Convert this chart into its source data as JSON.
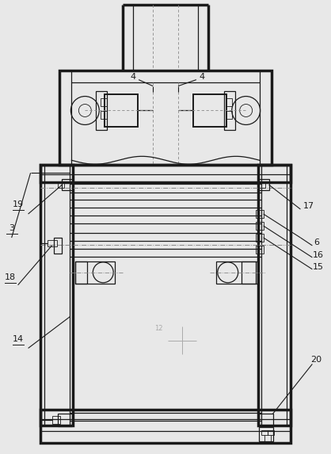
{
  "bg_color": "#e8e8e8",
  "line_color": "#1a1a1a",
  "gray_color": "#888888",
  "light_gray": "#aaaaaa",
  "fig_w": 4.18,
  "fig_h": 5.73,
  "dpi": 100
}
